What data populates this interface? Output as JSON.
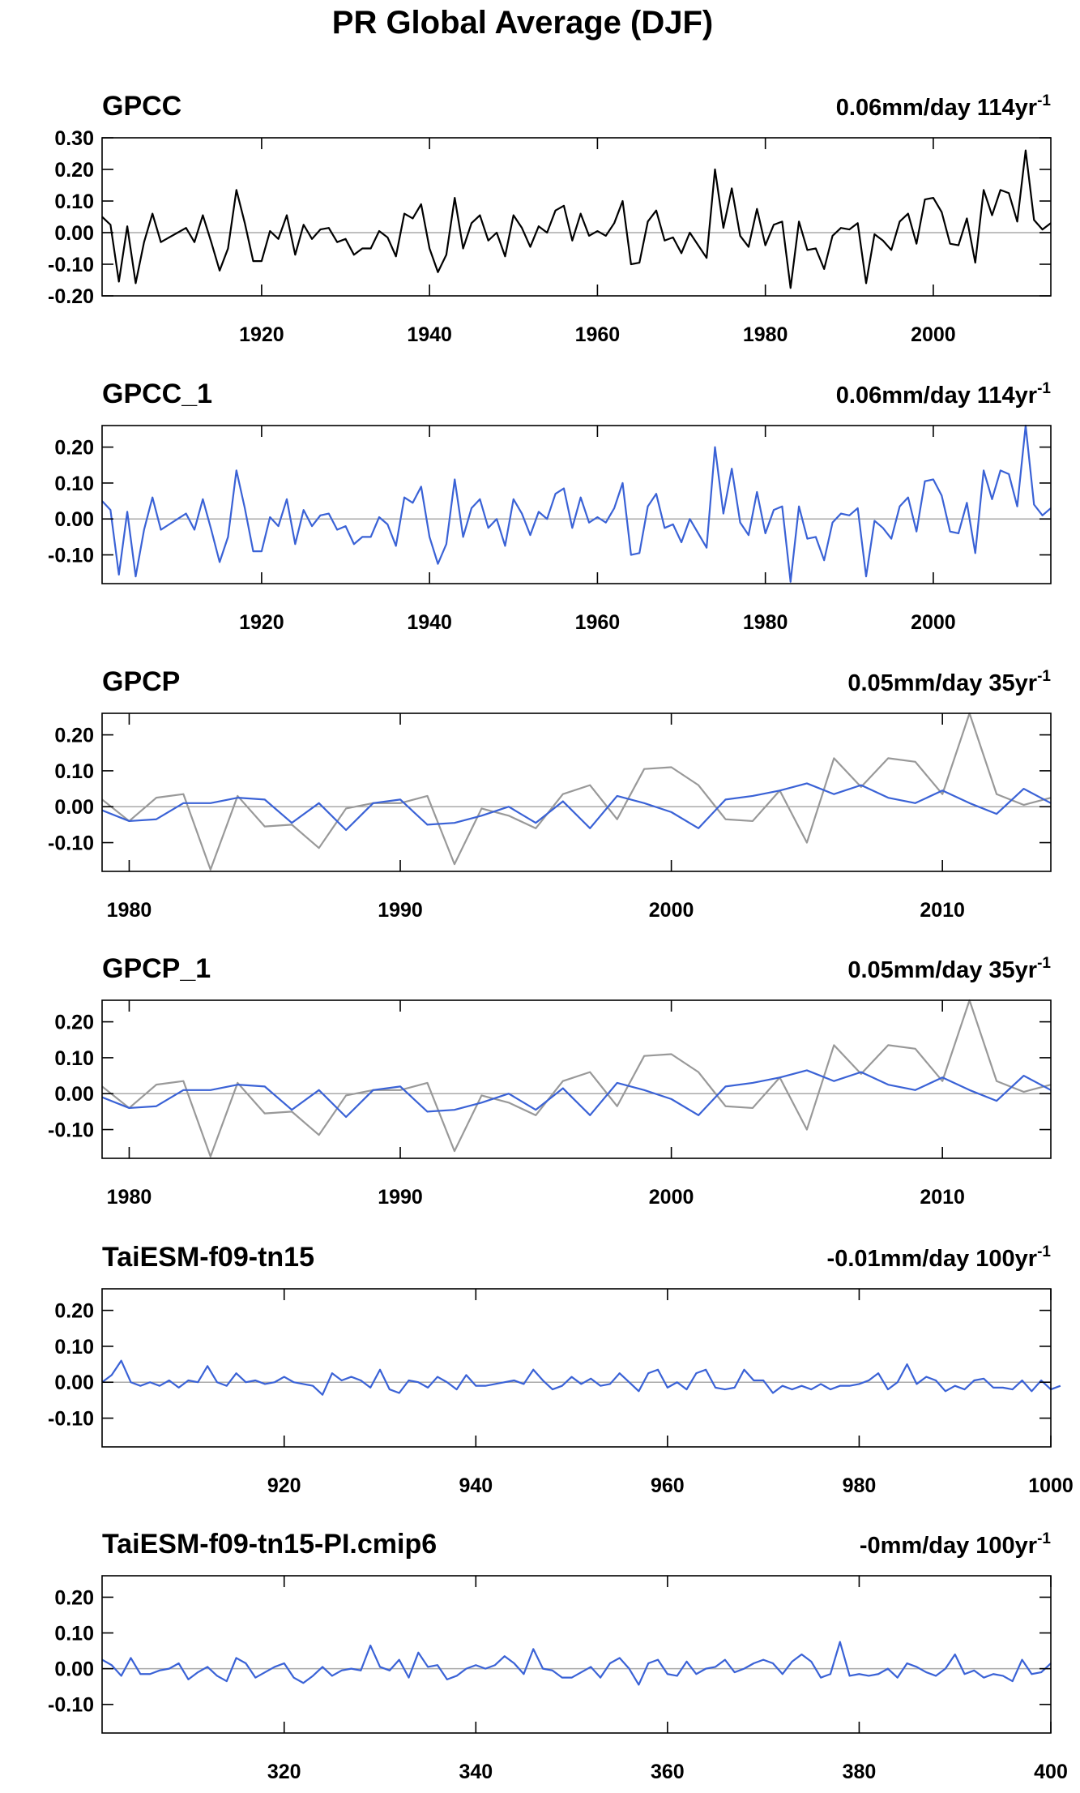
{
  "title": "PR Global Average (DJF)",
  "colors": {
    "model": "#3a62d6",
    "obs": "#999999",
    "black": "#000000",
    "zero": "#aaaaaa"
  },
  "chart_data": [
    {
      "type": "line",
      "title": "GPCC",
      "trend_text": "0.06mm/day 114yr",
      "trend_sup": "-1",
      "xlim": [
        1901,
        2014
      ],
      "ylim": [
        -0.2,
        0.3
      ],
      "yticks": [
        -0.2,
        -0.1,
        0.0,
        0.1,
        0.2,
        0.3
      ],
      "ytick_labels": [
        "-0.20",
        "-0.10",
        "0.00",
        "0.10",
        "0.20",
        "0.30"
      ],
      "xticks": [
        1920,
        1940,
        1960,
        1980,
        2000
      ],
      "xtick_labels": [
        "1920",
        "1940",
        "1960",
        "1980",
        "2000"
      ],
      "series": [
        {
          "color": "black",
          "x_start": 1901,
          "x_step": 1,
          "values": [
            0.05,
            0.025,
            -0.155,
            0.02,
            -0.16,
            -0.03,
            0.06,
            -0.03,
            -0.015,
            0.0,
            0.015,
            -0.03,
            0.055,
            -0.03,
            -0.12,
            -0.05,
            0.135,
            0.03,
            -0.09,
            -0.09,
            0.005,
            -0.02,
            0.055,
            -0.07,
            0.025,
            -0.02,
            0.01,
            0.015,
            -0.03,
            -0.02,
            -0.07,
            -0.05,
            -0.05,
            0.005,
            -0.015,
            -0.075,
            0.06,
            0.045,
            0.09,
            -0.05,
            -0.125,
            -0.07,
            0.11,
            -0.05,
            0.03,
            0.055,
            -0.025,
            0.0,
            -0.075,
            0.055,
            0.015,
            -0.045,
            0.02,
            0.0,
            0.07,
            0.085,
            -0.025,
            0.06,
            -0.01,
            0.005,
            -0.01,
            0.03,
            0.1,
            -0.1,
            -0.095,
            0.035,
            0.07,
            -0.025,
            -0.015,
            -0.065,
            0.0,
            -0.04,
            -0.08,
            0.2,
            0.015,
            0.14,
            -0.01,
            -0.045,
            0.075,
            -0.04,
            0.025,
            0.035,
            -0.175,
            0.035,
            -0.055,
            -0.05,
            -0.115,
            -0.01,
            0.015,
            0.01,
            0.03,
            -0.16,
            -0.005,
            -0.025,
            -0.055,
            0.035,
            0.06,
            -0.035,
            0.105,
            0.11,
            0.065,
            -0.035,
            -0.04,
            0.045,
            -0.095,
            0.135,
            0.055,
            0.135,
            0.125,
            0.035,
            0.26,
            0.04,
            0.01,
            0.03
          ]
        }
      ]
    },
    {
      "type": "line",
      "title": "GPCC_1",
      "trend_text": "0.06mm/day 114yr",
      "trend_sup": "-1",
      "xlim": [
        1901,
        2014
      ],
      "ylim": [
        -0.18,
        0.26
      ],
      "yticks": [
        -0.1,
        0.0,
        0.1,
        0.2
      ],
      "ytick_labels": [
        "-0.10",
        "0.00",
        "0.10",
        "0.20"
      ],
      "xticks": [
        1920,
        1940,
        1960,
        1980,
        2000
      ],
      "xtick_labels": [
        "1920",
        "1940",
        "1960",
        "1980",
        "2000"
      ],
      "series": [
        {
          "color": "model",
          "x_start": 1901,
          "x_step": 1,
          "values": [
            0.05,
            0.025,
            -0.155,
            0.02,
            -0.16,
            -0.03,
            0.06,
            -0.03,
            -0.015,
            0.0,
            0.015,
            -0.03,
            0.055,
            -0.03,
            -0.12,
            -0.05,
            0.135,
            0.03,
            -0.09,
            -0.09,
            0.005,
            -0.02,
            0.055,
            -0.07,
            0.025,
            -0.02,
            0.01,
            0.015,
            -0.03,
            -0.02,
            -0.07,
            -0.05,
            -0.05,
            0.005,
            -0.015,
            -0.075,
            0.06,
            0.045,
            0.09,
            -0.05,
            -0.125,
            -0.07,
            0.11,
            -0.05,
            0.03,
            0.055,
            -0.025,
            0.0,
            -0.075,
            0.055,
            0.015,
            -0.045,
            0.02,
            0.0,
            0.07,
            0.085,
            -0.025,
            0.06,
            -0.01,
            0.005,
            -0.01,
            0.03,
            0.1,
            -0.1,
            -0.095,
            0.035,
            0.07,
            -0.025,
            -0.015,
            -0.065,
            0.0,
            -0.04,
            -0.08,
            0.2,
            0.015,
            0.14,
            -0.01,
            -0.045,
            0.075,
            -0.04,
            0.025,
            0.035,
            -0.175,
            0.035,
            -0.055,
            -0.05,
            -0.115,
            -0.01,
            0.015,
            0.01,
            0.03,
            -0.16,
            -0.005,
            -0.025,
            -0.055,
            0.035,
            0.06,
            -0.035,
            0.105,
            0.11,
            0.065,
            -0.035,
            -0.04,
            0.045,
            -0.095,
            0.135,
            0.055,
            0.135,
            0.125,
            0.035,
            0.26,
            0.04,
            0.01,
            0.03
          ]
        }
      ]
    },
    {
      "type": "line",
      "title": "GPCP",
      "trend_text": "0.05mm/day 35yr",
      "trend_sup": "-1",
      "xlim": [
        1979,
        2014
      ],
      "ylim": [
        -0.18,
        0.26
      ],
      "yticks": [
        -0.1,
        0.0,
        0.1,
        0.2
      ],
      "ytick_labels": [
        "-0.10",
        "0.00",
        "0.10",
        "0.20"
      ],
      "xticks": [
        1980,
        1990,
        2000,
        2010
      ],
      "xtick_labels": [
        "1980",
        "1990",
        "2000",
        "2010"
      ],
      "series": [
        {
          "color": "obs",
          "x_start": 1979,
          "x_step": 1,
          "values": [
            0.02,
            -0.04,
            0.025,
            0.035,
            -0.175,
            0.03,
            -0.055,
            -0.05,
            -0.115,
            -0.005,
            0.01,
            0.01,
            0.03,
            -0.16,
            -0.005,
            -0.025,
            -0.06,
            0.035,
            0.06,
            -0.035,
            0.105,
            0.11,
            0.06,
            -0.035,
            -0.04,
            0.045,
            -0.1,
            0.135,
            0.055,
            0.135,
            0.125,
            0.035,
            0.26,
            0.035,
            0.005,
            0.025
          ]
        },
        {
          "color": "model",
          "x_start": 1979,
          "x_step": 1,
          "values": [
            -0.01,
            -0.04,
            -0.035,
            0.01,
            0.01,
            0.025,
            0.02,
            -0.045,
            0.01,
            -0.065,
            0.01,
            0.02,
            -0.05,
            -0.045,
            -0.025,
            0.0,
            -0.045,
            0.015,
            -0.06,
            0.03,
            0.01,
            -0.015,
            -0.06,
            0.02,
            0.03,
            0.045,
            0.065,
            0.035,
            0.06,
            0.025,
            0.01,
            0.045,
            0.01,
            -0.02,
            0.05,
            0.01
          ]
        }
      ]
    },
    {
      "type": "line",
      "title": "GPCP_1",
      "trend_text": "0.05mm/day 35yr",
      "trend_sup": "-1",
      "xlim": [
        1979,
        2014
      ],
      "ylim": [
        -0.18,
        0.26
      ],
      "yticks": [
        -0.1,
        0.0,
        0.1,
        0.2
      ],
      "ytick_labels": [
        "-0.10",
        "0.00",
        "0.10",
        "0.20"
      ],
      "xticks": [
        1980,
        1990,
        2000,
        2010
      ],
      "xtick_labels": [
        "1980",
        "1990",
        "2000",
        "2010"
      ],
      "series": [
        {
          "color": "obs",
          "x_start": 1979,
          "x_step": 1,
          "values": [
            0.02,
            -0.04,
            0.025,
            0.035,
            -0.175,
            0.03,
            -0.055,
            -0.05,
            -0.115,
            -0.005,
            0.01,
            0.01,
            0.03,
            -0.16,
            -0.005,
            -0.025,
            -0.06,
            0.035,
            0.06,
            -0.035,
            0.105,
            0.11,
            0.06,
            -0.035,
            -0.04,
            0.045,
            -0.1,
            0.135,
            0.055,
            0.135,
            0.125,
            0.035,
            0.26,
            0.035,
            0.005,
            0.025
          ]
        },
        {
          "color": "model",
          "x_start": 1979,
          "x_step": 1,
          "values": [
            -0.01,
            -0.04,
            -0.035,
            0.01,
            0.01,
            0.025,
            0.02,
            -0.045,
            0.01,
            -0.065,
            0.01,
            0.02,
            -0.05,
            -0.045,
            -0.025,
            0.0,
            -0.045,
            0.015,
            -0.06,
            0.03,
            0.01,
            -0.015,
            -0.06,
            0.02,
            0.03,
            0.045,
            0.065,
            0.035,
            0.06,
            0.025,
            0.01,
            0.045,
            0.01,
            -0.02,
            0.05,
            0.01
          ]
        }
      ]
    },
    {
      "type": "line",
      "title": "TaiESM-f09-tn15",
      "trend_text": "-0.01mm/day 100yr",
      "trend_sup": "-1",
      "xlim": [
        901,
        1000
      ],
      "ylim": [
        -0.18,
        0.26
      ],
      "yticks": [
        -0.1,
        0.0,
        0.1,
        0.2
      ],
      "ytick_labels": [
        "-0.10",
        "0.00",
        "0.10",
        "0.20"
      ],
      "xticks": [
        920,
        940,
        960,
        980,
        1000
      ],
      "xtick_labels": [
        "920",
        "940",
        "960",
        "980",
        "1000"
      ],
      "series": [
        {
          "color": "model",
          "x_start": 901,
          "x_step": 1,
          "values": [
            0.0,
            0.02,
            0.06,
            0.0,
            -0.01,
            0.0,
            -0.01,
            0.005,
            -0.015,
            0.005,
            0.0,
            0.045,
            0.0,
            -0.01,
            0.025,
            0.0,
            0.005,
            -0.005,
            0.0,
            0.015,
            0.0,
            -0.005,
            -0.01,
            -0.035,
            0.025,
            0.005,
            0.015,
            0.005,
            -0.015,
            0.035,
            -0.02,
            -0.03,
            0.005,
            0.0,
            -0.015,
            0.015,
            0.0,
            -0.02,
            0.02,
            -0.01,
            -0.01,
            -0.005,
            0.0,
            0.005,
            -0.005,
            0.035,
            0.005,
            -0.02,
            -0.01,
            0.015,
            -0.005,
            0.01,
            -0.01,
            -0.005,
            0.025,
            0.0,
            -0.025,
            0.025,
            0.035,
            -0.015,
            0.0,
            -0.02,
            0.025,
            0.035,
            -0.015,
            -0.02,
            -0.015,
            0.035,
            0.005,
            0.005,
            -0.03,
            -0.01,
            -0.02,
            -0.01,
            -0.02,
            -0.005,
            -0.02,
            -0.01,
            -0.01,
            -0.005,
            0.005,
            0.025,
            -0.02,
            0.0,
            0.05,
            -0.005,
            0.015,
            0.005,
            -0.025,
            -0.01,
            -0.02,
            0.005,
            0.01,
            -0.015,
            -0.015,
            -0.02,
            0.005,
            -0.025,
            0.005,
            -0.02,
            -0.01
          ]
        }
      ]
    },
    {
      "type": "line",
      "title": "TaiESM-f09-tn15-PI.cmip6",
      "trend_text": "-0mm/day 100yr",
      "trend_sup": "-1",
      "xlim": [
        301,
        400
      ],
      "ylim": [
        -0.18,
        0.26
      ],
      "yticks": [
        -0.1,
        0.0,
        0.1,
        0.2
      ],
      "ytick_labels": [
        "-0.10",
        "0.00",
        "0.10",
        "0.20"
      ],
      "xticks": [
        320,
        340,
        360,
        380,
        400
      ],
      "xtick_labels": [
        "320",
        "340",
        "360",
        "380",
        "400"
      ],
      "series": [
        {
          "color": "model",
          "x_start": 301,
          "x_step": 1,
          "values": [
            0.025,
            0.01,
            -0.02,
            0.03,
            -0.015,
            -0.015,
            -0.005,
            0.0,
            0.015,
            -0.03,
            -0.01,
            0.005,
            -0.02,
            -0.035,
            0.03,
            0.015,
            -0.025,
            -0.01,
            0.005,
            0.015,
            -0.025,
            -0.04,
            -0.02,
            0.005,
            -0.02,
            -0.005,
            0.0,
            -0.005,
            0.065,
            0.005,
            -0.005,
            0.025,
            -0.025,
            0.045,
            0.005,
            0.01,
            -0.03,
            -0.02,
            0.0,
            0.01,
            0.0,
            0.01,
            0.035,
            0.015,
            -0.015,
            0.055,
            0.0,
            -0.005,
            -0.025,
            -0.025,
            -0.01,
            0.005,
            -0.025,
            0.015,
            0.03,
            0.0,
            -0.045,
            0.015,
            0.025,
            -0.015,
            -0.02,
            0.02,
            -0.015,
            0.0,
            0.005,
            0.025,
            -0.01,
            0.0,
            0.015,
            0.025,
            0.015,
            -0.015,
            0.02,
            0.04,
            0.02,
            -0.025,
            -0.015,
            0.075,
            -0.02,
            -0.015,
            -0.02,
            -0.015,
            0.0,
            -0.025,
            0.015,
            0.005,
            -0.01,
            -0.02,
            0.0,
            0.04,
            -0.015,
            -0.005,
            -0.025,
            -0.015,
            -0.02,
            -0.035,
            0.025,
            -0.015,
            -0.01,
            0.015
          ]
        }
      ]
    }
  ]
}
